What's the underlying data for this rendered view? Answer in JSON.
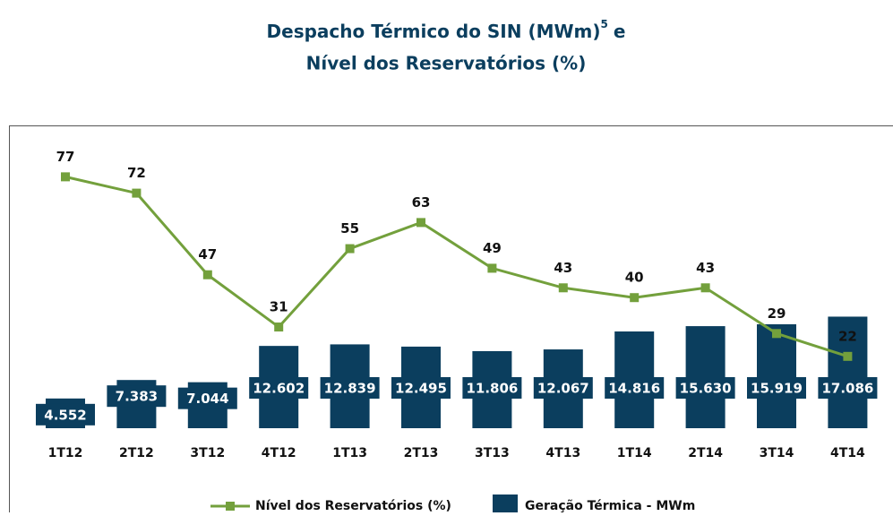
{
  "chart_data": {
    "type": "bar-line",
    "title": {
      "line1": "Despacho Térmico do SIN (MWm)",
      "footnote": "5",
      "line1_end": "e",
      "line2": "Nível dos Reservatórios (%)"
    },
    "categories": [
      "1T12",
      "2T12",
      "3T12",
      "4T12",
      "1T13",
      "2T13",
      "3T13",
      "4T13",
      "1T14",
      "2T14",
      "3T14",
      "4T14"
    ],
    "series": [
      {
        "name": "Nível dos Reservatórios (%)",
        "color": "#73a03c",
        "axis": "y2",
        "values": [
          77,
          72,
          47,
          31,
          55,
          63,
          49,
          43,
          40,
          43,
          29,
          22
        ]
      },
      {
        "name": "Geração Térmica - MWm",
        "color": "#0b3e5e",
        "axis": "y",
        "values": [
          4552,
          7383,
          7044,
          12602,
          12839,
          12495,
          11806,
          12067,
          14816,
          15630,
          15919,
          17086
        ],
        "value_labels": [
          "4.552",
          "7.383",
          "7.044",
          "12.602",
          "12.839",
          "12.495",
          "11.806",
          "12.067",
          "14.816",
          "15.630",
          "15.919",
          "17.086"
        ]
      }
    ],
    "ylim": [
      0,
      45000
    ],
    "y2lim": [
      0,
      90
    ]
  }
}
